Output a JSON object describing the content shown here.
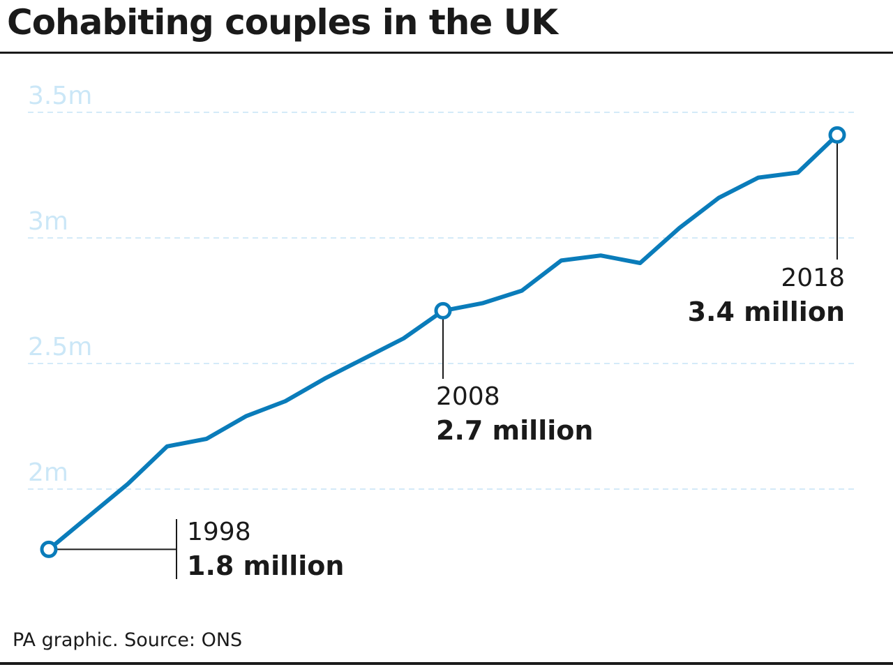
{
  "title": "Cohabiting couples in the UK",
  "footer": "PA graphic. Source: ONS",
  "colors": {
    "line": "#0a7cba",
    "grid": "#c5e3f6",
    "tick_label": "#cbe7f7",
    "text": "#1a1a1a"
  },
  "chart_data": {
    "type": "line",
    "title": "Cohabiting couples in the UK",
    "xlabel": "",
    "ylabel": "",
    "x": [
      1998,
      1999,
      2000,
      2001,
      2002,
      2003,
      2004,
      2005,
      2006,
      2007,
      2008,
      2009,
      2010,
      2011,
      2012,
      2013,
      2014,
      2015,
      2016,
      2017,
      2018
    ],
    "series": [
      {
        "values": [
          1.76,
          1.89,
          2.02,
          2.17,
          2.2,
          2.29,
          2.35,
          2.44,
          2.52,
          2.6,
          2.71,
          2.74,
          2.79,
          2.91,
          2.93,
          2.9,
          3.04,
          3.16,
          3.24,
          3.26,
          3.41
        ]
      }
    ],
    "ylim": [
      1.5,
      3.6
    ],
    "yticks": [
      {
        "value": 2.0,
        "label": "2m"
      },
      {
        "value": 2.5,
        "label": "2.5m"
      },
      {
        "value": 3.0,
        "label": "3m"
      },
      {
        "value": 3.5,
        "label": "3.5m"
      }
    ],
    "grid": true,
    "annotations": [
      {
        "x": 1998,
        "year": "1998",
        "value": "1.8 million"
      },
      {
        "x": 2008,
        "year": "2008",
        "value": "2.7 million"
      },
      {
        "x": 2018,
        "year": "2018",
        "value": "3.4 million"
      }
    ]
  }
}
